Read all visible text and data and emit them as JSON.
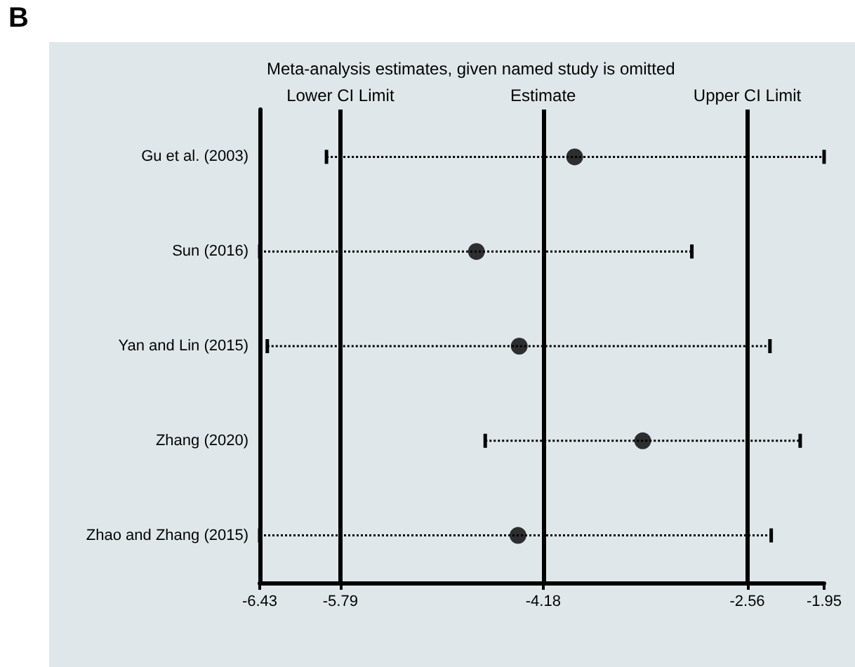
{
  "chart_data": {
    "type": "scatter",
    "orientation": "horizontal",
    "title": "Meta-analysis estimates, given named study is omitted",
    "annotations": [
      "B"
    ],
    "categories": [
      "Gu et al. (2003)",
      "Sun (2016)",
      "Yan and Lin (2015)",
      "Zhang (2020)",
      "Zhao and Zhang (2015)"
    ],
    "values": [
      -3.93,
      -4.71,
      -4.37,
      -3.39,
      -4.38
    ],
    "errors": [
      [
        -5.9,
        -1.95
      ],
      [
        -6.43,
        -3.0
      ],
      [
        -6.37,
        -2.38
      ],
      [
        -4.64,
        -2.14
      ],
      [
        -6.43,
        -2.37
      ]
    ],
    "color": "#000000",
    "marker": "circle",
    "line_style": "dotted",
    "xlim": [
      -6.43,
      -1.95
    ],
    "xticks": [
      -6.43,
      -5.79,
      -4.18,
      -2.56,
      -1.95
    ],
    "ref_lines": [
      {
        "axis": "x",
        "value": -5.79,
        "label": "Lower CI Limit"
      },
      {
        "axis": "x",
        "value": -4.18,
        "label": "Estimate"
      },
      {
        "axis": "x",
        "value": -2.56,
        "label": "Upper CI Limit"
      }
    ],
    "grid": false
  }
}
